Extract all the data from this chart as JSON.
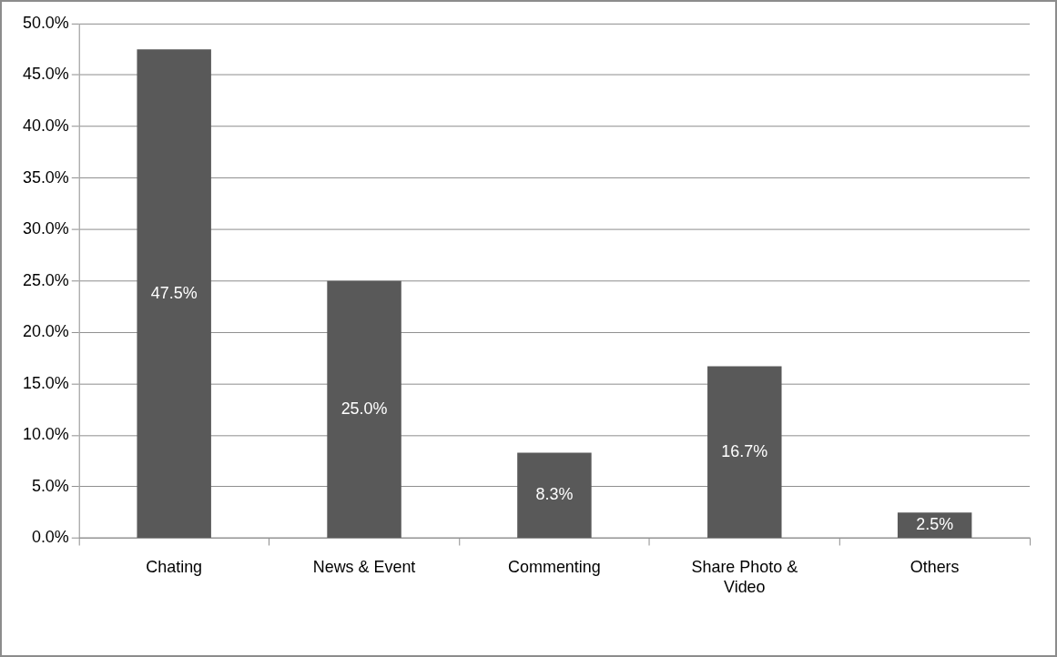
{
  "chart_data": {
    "type": "bar",
    "categories": [
      "Chating",
      "News & Event",
      "Commenting",
      "Share Photo & Video",
      "Others"
    ],
    "values": [
      47.5,
      25.0,
      8.3,
      16.7,
      2.5
    ],
    "value_labels": [
      "47.5%",
      "25.0%",
      "8.3%",
      "16.7%",
      "2.5%"
    ],
    "color": "#595959",
    "ylim": [
      0,
      50
    ],
    "yticks": [
      {
        "value": 0,
        "label": "0.0%"
      },
      {
        "value": 5,
        "label": "5.0%"
      },
      {
        "value": 10,
        "label": "10.0%"
      },
      {
        "value": 15,
        "label": "15.0%"
      },
      {
        "value": 20,
        "label": "20.0%"
      },
      {
        "value": 25,
        "label": "25.0%"
      },
      {
        "value": 30,
        "label": "30.0%"
      },
      {
        "value": 35,
        "label": "35.0%"
      },
      {
        "value": 40,
        "label": "40.0%"
      },
      {
        "value": 45,
        "label": "45.0%"
      },
      {
        "value": 50,
        "label": "50.0%"
      }
    ],
    "grid": "y",
    "legend": false
  }
}
